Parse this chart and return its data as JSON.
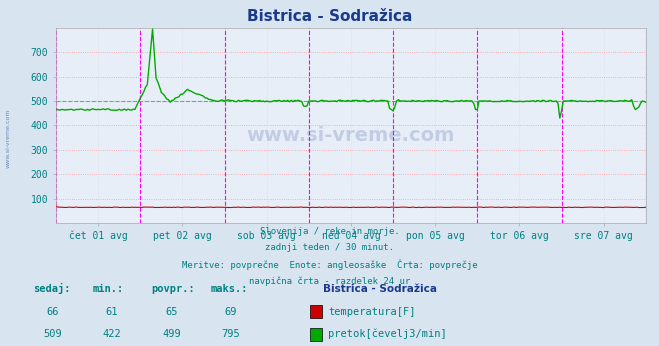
{
  "title": "Bistrica - Sodražica",
  "title_color": "#1a3a8a",
  "bg_color": "#d8e4f0",
  "plot_bg_color": "#e8eef8",
  "grid_h_color": "#ff9999",
  "grid_v_color": "#cccccc",
  "xlabel_color": "#008080",
  "ylabel_color": "#008080",
  "footer_color": "#008080",
  "x_labels": [
    "čet 01 avg",
    "pet 02 avg",
    "sob 03 avg",
    "ned 04 avg",
    "pon 05 avg",
    "tor 06 avg",
    "sre 07 avg"
  ],
  "y_ticks": [
    100,
    200,
    300,
    400,
    500,
    600,
    700
  ],
  "ylim": [
    0,
    800
  ],
  "n_points": 337,
  "temp_color": "#cc0000",
  "flow_color": "#00aa00",
  "flow_avg": 499,
  "vline_color": "#ff00ff",
  "footer_lines": [
    "Slovenija / reke in morje.",
    "zadnji teden / 30 minut.",
    "Meritve: povprečne  Enote: angleosaške  Črta: povprečje",
    "navpična črta - razdelek 24 ur"
  ],
  "legend_title": "Bistrica - Sodražica",
  "legend_entries": [
    "temperatura[F]",
    "pretok[čevelj3/min]"
  ],
  "legend_colors": [
    "#cc0000",
    "#00aa00"
  ],
  "stat_headers": [
    "sedaj:",
    "min.:",
    "povpr.:",
    "maks.:"
  ],
  "stat_temp": [
    66,
    61,
    65,
    69
  ],
  "stat_flow": [
    509,
    422,
    499,
    795
  ]
}
